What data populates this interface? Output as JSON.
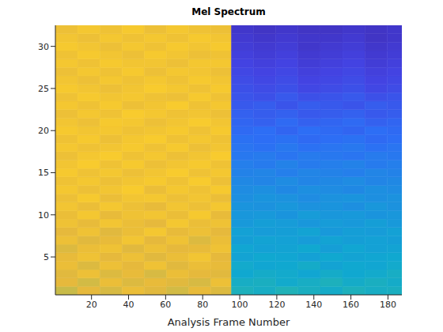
{
  "chart_data": {
    "type": "heatmap",
    "title": "Mel Spectrum",
    "x_label": "Analysis Frame Number",
    "xlim": [
      0.5,
      187.5
    ],
    "xticks": [
      20,
      40,
      60,
      80,
      100,
      120,
      140,
      160,
      180
    ],
    "ylim": [
      0.5,
      32.5
    ],
    "yticks": [
      5,
      10,
      15,
      20,
      25,
      30
    ],
    "x_edges": [
      0.5,
      12.5,
      24.5,
      36.5,
      48.5,
      60.5,
      72.5,
      84.5,
      95.5,
      107.5,
      119.5,
      131.5,
      143.5,
      155.5,
      167.5,
      179.5,
      187.5
    ],
    "y_edges": [
      0.5,
      1.5,
      2.5,
      3.5,
      4.5,
      5.5,
      6.5,
      7.5,
      8.5,
      9.5,
      10.5,
      11.5,
      12.5,
      13.5,
      14.5,
      15.5,
      16.5,
      17.5,
      18.5,
      19.5,
      20.5,
      21.5,
      22.5,
      23.5,
      24.5,
      25.5,
      26.5,
      27.5,
      28.5,
      29.5,
      30.5,
      31.5,
      32.5
    ],
    "color_range": [
      0,
      1
    ],
    "cells": [
      [
        0.74,
        0.8,
        0.77,
        0.82,
        0.79,
        0.76,
        0.81,
        0.78,
        0.45,
        0.43,
        0.46,
        0.44,
        0.42,
        0.45,
        0.43,
        0.44
      ],
      [
        0.8,
        0.76,
        0.82,
        0.78,
        0.81,
        0.79,
        0.77,
        0.83,
        0.43,
        0.44,
        0.41,
        0.43,
        0.45,
        0.42,
        0.44,
        0.42
      ],
      [
        0.79,
        0.83,
        0.78,
        0.81,
        0.77,
        0.82,
        0.8,
        0.79,
        0.4,
        0.42,
        0.41,
        0.39,
        0.42,
        0.4,
        0.41,
        0.43
      ],
      [
        0.82,
        0.78,
        0.83,
        0.8,
        0.84,
        0.79,
        0.82,
        0.81,
        0.41,
        0.39,
        0.4,
        0.42,
        0.38,
        0.4,
        0.39,
        0.41
      ],
      [
        0.81,
        0.84,
        0.8,
        0.83,
        0.79,
        0.82,
        0.85,
        0.8,
        0.38,
        0.4,
        0.39,
        0.37,
        0.4,
        0.38,
        0.39,
        0.4
      ],
      [
        0.78,
        0.82,
        0.84,
        0.79,
        0.83,
        0.8,
        0.81,
        0.84,
        0.39,
        0.37,
        0.38,
        0.4,
        0.36,
        0.39,
        0.37,
        0.38
      ],
      [
        0.83,
        0.79,
        0.81,
        0.85,
        0.8,
        0.84,
        0.78,
        0.82,
        0.36,
        0.38,
        0.37,
        0.35,
        0.38,
        0.36,
        0.37,
        0.36
      ],
      [
        0.8,
        0.84,
        0.79,
        0.82,
        0.86,
        0.81,
        0.83,
        0.8,
        0.37,
        0.35,
        0.36,
        0.38,
        0.34,
        0.36,
        0.35,
        0.37
      ],
      [
        0.84,
        0.81,
        0.85,
        0.82,
        0.8,
        0.86,
        0.82,
        0.84,
        0.34,
        0.36,
        0.35,
        0.33,
        0.35,
        0.34,
        0.36,
        0.34
      ],
      [
        0.82,
        0.86,
        0.81,
        0.84,
        0.85,
        0.82,
        0.87,
        0.81,
        0.33,
        0.34,
        0.32,
        0.35,
        0.33,
        0.34,
        0.32,
        0.33
      ],
      [
        0.85,
        0.82,
        0.86,
        0.83,
        0.81,
        0.85,
        0.83,
        0.86,
        0.32,
        0.31,
        0.33,
        0.31,
        0.32,
        0.3,
        0.33,
        0.31
      ],
      [
        0.83,
        0.87,
        0.82,
        0.85,
        0.86,
        0.83,
        0.85,
        0.82,
        0.3,
        0.32,
        0.31,
        0.29,
        0.31,
        0.32,
        0.3,
        0.31
      ],
      [
        0.86,
        0.83,
        0.85,
        0.88,
        0.82,
        0.86,
        0.84,
        0.87,
        0.29,
        0.3,
        0.28,
        0.3,
        0.29,
        0.28,
        0.3,
        0.29
      ],
      [
        0.84,
        0.86,
        0.83,
        0.85,
        0.87,
        0.84,
        0.88,
        0.83,
        0.28,
        0.27,
        0.29,
        0.27,
        0.28,
        0.29,
        0.27,
        0.28
      ],
      [
        0.87,
        0.84,
        0.86,
        0.83,
        0.85,
        0.88,
        0.84,
        0.86,
        0.26,
        0.27,
        0.25,
        0.27,
        0.26,
        0.25,
        0.27,
        0.26
      ],
      [
        0.85,
        0.88,
        0.84,
        0.87,
        0.83,
        0.85,
        0.87,
        0.84,
        0.25,
        0.24,
        0.26,
        0.24,
        0.25,
        0.26,
        0.24,
        0.25
      ],
      [
        0.83,
        0.86,
        0.88,
        0.84,
        0.86,
        0.83,
        0.85,
        0.88,
        0.23,
        0.24,
        0.22,
        0.24,
        0.23,
        0.22,
        0.24,
        0.23
      ],
      [
        0.86,
        0.84,
        0.85,
        0.87,
        0.84,
        0.87,
        0.83,
        0.85,
        0.22,
        0.21,
        0.23,
        0.21,
        0.22,
        0.23,
        0.21,
        0.22
      ],
      [
        0.84,
        0.87,
        0.83,
        0.86,
        0.88,
        0.84,
        0.86,
        0.84,
        0.21,
        0.2,
        0.21,
        0.19,
        0.2,
        0.21,
        0.19,
        0.2
      ],
      [
        0.87,
        0.85,
        0.86,
        0.84,
        0.85,
        0.87,
        0.84,
        0.87,
        0.19,
        0.2,
        0.18,
        0.2,
        0.19,
        0.18,
        0.2,
        0.19
      ],
      [
        0.85,
        0.83,
        0.87,
        0.86,
        0.83,
        0.85,
        0.88,
        0.85,
        0.18,
        0.17,
        0.19,
        0.17,
        0.18,
        0.19,
        0.17,
        0.18
      ],
      [
        0.83,
        0.86,
        0.84,
        0.88,
        0.86,
        0.84,
        0.85,
        0.83,
        0.17,
        0.16,
        0.17,
        0.15,
        0.16,
        0.17,
        0.15,
        0.16
      ],
      [
        0.86,
        0.84,
        0.87,
        0.83,
        0.85,
        0.88,
        0.84,
        0.86,
        0.15,
        0.16,
        0.14,
        0.16,
        0.15,
        0.14,
        0.16,
        0.15
      ],
      [
        0.84,
        0.87,
        0.85,
        0.86,
        0.84,
        0.83,
        0.87,
        0.84,
        0.14,
        0.13,
        0.15,
        0.13,
        0.14,
        0.15,
        0.13,
        0.14
      ],
      [
        0.87,
        0.85,
        0.83,
        0.85,
        0.88,
        0.86,
        0.84,
        0.87,
        0.13,
        0.12,
        0.13,
        0.11,
        0.12,
        0.13,
        0.11,
        0.12
      ],
      [
        0.85,
        0.83,
        0.86,
        0.84,
        0.86,
        0.84,
        0.87,
        0.85,
        0.12,
        0.11,
        0.12,
        0.1,
        0.11,
        0.12,
        0.1,
        0.11
      ],
      [
        0.83,
        0.86,
        0.84,
        0.87,
        0.83,
        0.86,
        0.85,
        0.83,
        0.11,
        0.1,
        0.11,
        0.09,
        0.1,
        0.11,
        0.09,
        0.1
      ],
      [
        0.86,
        0.84,
        0.87,
        0.85,
        0.85,
        0.83,
        0.86,
        0.86,
        0.1,
        0.09,
        0.1,
        0.08,
        0.09,
        0.1,
        0.08,
        0.09
      ],
      [
        0.84,
        0.87,
        0.85,
        0.83,
        0.87,
        0.85,
        0.83,
        0.84,
        0.09,
        0.08,
        0.09,
        0.07,
        0.08,
        0.09,
        0.07,
        0.08
      ],
      [
        0.87,
        0.85,
        0.83,
        0.86,
        0.84,
        0.87,
        0.85,
        0.87,
        0.08,
        0.07,
        0.08,
        0.06,
        0.07,
        0.08,
        0.06,
        0.07
      ],
      [
        0.85,
        0.83,
        0.86,
        0.84,
        0.86,
        0.84,
        0.87,
        0.85,
        0.07,
        0.06,
        0.07,
        0.06,
        0.06,
        0.07,
        0.05,
        0.06
      ],
      [
        0.83,
        0.86,
        0.84,
        0.87,
        0.83,
        0.86,
        0.84,
        0.83,
        0.06,
        0.05,
        0.06,
        0.05,
        0.05,
        0.06,
        0.05,
        0.06
      ]
    ]
  }
}
